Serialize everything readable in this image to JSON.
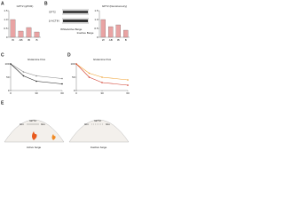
{
  "panels": {
    "a": "A",
    "b": "B",
    "c": "C",
    "d": "D",
    "e": "E"
  },
  "blot": {
    "bands": [
      "GPT2",
      "β-ACTIN"
    ],
    "groups": [
      "White",
      "Active Beige",
      "Inactive Beige"
    ]
  },
  "schema": {
    "left": "Active beige",
    "right": "Inactive beige",
    "node_left": "Gln",
    "node_right": "Glu",
    "enzyme": "GPT2"
  },
  "chart_data": [
    {
      "type": "bar",
      "title": "GPT2 (qPCR)",
      "categories": [
        "W",
        "AB",
        "IB",
        "B"
      ],
      "values": [
        1,
        0.35,
        0.55,
        0.3
      ],
      "color": "#e9a3a3",
      "ylim": [
        0,
        1.5
      ],
      "yticks": [
        0,
        0.5,
        {
          "value": 1,
          "label": "1.0"
        },
        1.5
      ]
    },
    {
      "type": "bar",
      "title": "GPT2 (Densitometry)",
      "categories": [
        "W",
        "AB",
        "IB",
        "B"
      ],
      "values": [
        1,
        0.6,
        0.7,
        0.4
      ],
      "color": "#e9a3a3",
      "ylim": [
        0,
        1.5
      ],
      "yticks": [
        0,
        0.5,
        {
          "value": 1,
          "label": "1.0"
        },
        1.5
      ]
    },
    {
      "type": "line",
      "title": "Glutamine Flux",
      "x": [
        0,
        15,
        30,
        60
      ],
      "xlim": [
        0,
        60
      ],
      "xticks": [
        0,
        30,
        60
      ],
      "series": [
        {
          "color": "#888888",
          "values": [
            100,
            70,
            55,
            45
          ]
        },
        {
          "color": "#222222",
          "values": [
            100,
            55,
            35,
            25
          ]
        }
      ],
      "ylim": [
        0,
        100
      ],
      "yticks": [
        0,
        50,
        100
      ]
    },
    {
      "type": "line",
      "title": "Glutamine Flux",
      "x": [
        0,
        15,
        30,
        60
      ],
      "xlim": [
        0,
        60
      ],
      "xticks": [
        0,
        30,
        60
      ],
      "series": [
        {
          "color": "#f0a030",
          "values": [
            100,
            65,
            50,
            40
          ]
        },
        {
          "color": "#d03a2a",
          "values": [
            100,
            50,
            30,
            20
          ]
        }
      ],
      "ylim": [
        0,
        100
      ],
      "yticks": [
        0,
        50,
        100
      ]
    }
  ]
}
